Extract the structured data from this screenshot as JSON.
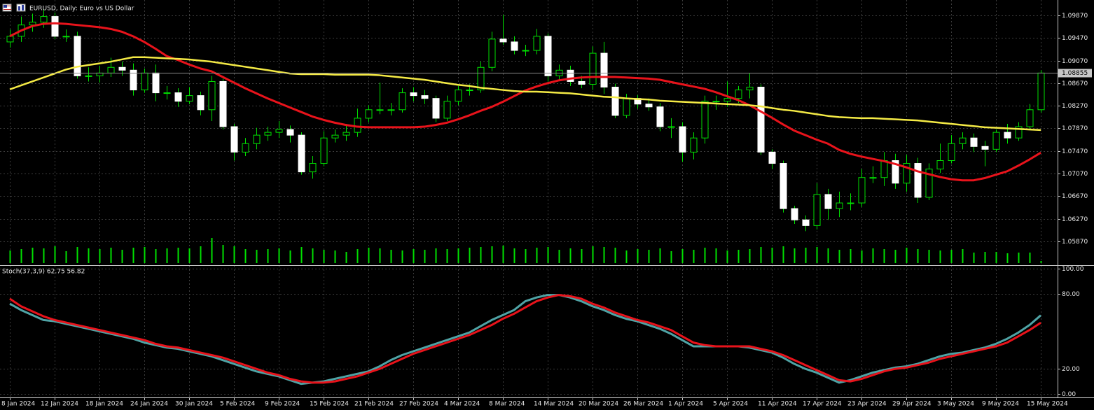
{
  "chart_data": [
    {
      "type": "candlestick",
      "title": "EURUSD, Daily:  Euro vs US Dollar",
      "categories": [
        "8 Jan 2024",
        null,
        null,
        null,
        "12 Jan 2024",
        null,
        null,
        null,
        "18 Jan 2024",
        null,
        null,
        null,
        "24 Jan 2024",
        null,
        null,
        null,
        "30 Jan 2024",
        null,
        null,
        null,
        "5 Feb 2024",
        null,
        null,
        null,
        "9 Feb 2024",
        null,
        null,
        null,
        "15 Feb 2024",
        null,
        null,
        null,
        "21 Feb 2024",
        null,
        null,
        null,
        "27 Feb 2024",
        null,
        null,
        null,
        "4 Mar 2024",
        null,
        null,
        null,
        "8 Mar 2024",
        null,
        null,
        null,
        "14 Mar 2024",
        null,
        null,
        null,
        "20 Mar 2024",
        null,
        null,
        null,
        "26 Mar 2024",
        null,
        null,
        null,
        "1 Apr 2024",
        null,
        null,
        null,
        "5 Apr 2024",
        null,
        null,
        null,
        "11 Apr 2024",
        null,
        null,
        null,
        "17 Apr 2024",
        null,
        null,
        null,
        "23 Apr 2024",
        null,
        null,
        null,
        "29 Apr 2024",
        null,
        null,
        null,
        "3 May 2024",
        null,
        null,
        null,
        "9 May 2024",
        null,
        null,
        null,
        "15 May 2024"
      ],
      "open": [
        1.094,
        1.095,
        1.097,
        1.0975,
        1.0985,
        1.095,
        1.095,
        1.088,
        1.088,
        1.0885,
        1.0895,
        1.089,
        1.0855,
        1.0885,
        1.085,
        1.085,
        1.0835,
        1.0845,
        1.082,
        1.087,
        1.079,
        1.0745,
        1.076,
        1.0775,
        1.078,
        1.0785,
        1.0775,
        1.071,
        1.0725,
        1.077,
        1.0775,
        1.078,
        1.0805,
        1.082,
        1.082,
        1.082,
        1.085,
        1.0845,
        1.084,
        1.0805,
        1.0835,
        1.0855,
        1.0855,
        1.0895,
        1.0945,
        1.094,
        1.0925,
        1.0925,
        1.095,
        1.088,
        1.089,
        1.087,
        1.0865,
        1.092,
        1.086,
        1.081,
        1.084,
        1.083,
        1.0825,
        1.079,
        1.079,
        1.0745,
        1.077,
        1.0835,
        1.0835,
        1.084,
        1.0855,
        1.086,
        1.0745,
        1.0725,
        1.0645,
        1.0625,
        1.0615,
        1.067,
        1.0645,
        1.0655,
        1.0655,
        1.07,
        1.07,
        1.073,
        1.069,
        1.0725,
        1.0665,
        1.0715,
        1.073,
        1.076,
        1.077,
        1.0755,
        1.075,
        1.078,
        1.077,
        1.079,
        1.082
      ],
      "high": [
        1.0962,
        1.0985,
        1.099,
        1.0998,
        1.0992,
        1.0962,
        1.0958,
        1.0895,
        1.0898,
        1.0912,
        1.0905,
        1.0902,
        1.0893,
        1.09,
        1.0862,
        1.0858,
        1.086,
        1.0852,
        1.088,
        1.0875,
        1.0795,
        1.077,
        1.0788,
        1.079,
        1.08,
        1.0792,
        1.078,
        1.0738,
        1.0782,
        1.0785,
        1.0795,
        1.0822,
        1.0828,
        1.0868,
        1.0832,
        1.0858,
        1.086,
        1.0855,
        1.0845,
        1.0845,
        1.0862,
        1.0865,
        1.0905,
        1.0958,
        1.0988,
        1.095,
        1.0935,
        1.0963,
        1.0955,
        1.09,
        1.0898,
        1.088,
        1.0932,
        1.094,
        1.0866,
        1.0848,
        1.0846,
        1.084,
        1.0832,
        1.0805,
        1.0798,
        1.078,
        1.0845,
        1.0845,
        1.087,
        1.0862,
        1.0885,
        1.0865,
        1.075,
        1.073,
        1.065,
        1.0633,
        1.069,
        1.068,
        1.0675,
        1.0672,
        1.0715,
        1.072,
        1.0745,
        1.0742,
        1.074,
        1.0735,
        1.0725,
        1.076,
        1.0775,
        1.078,
        1.0778,
        1.0765,
        1.0785,
        1.0795,
        1.0798,
        1.083,
        1.089
      ],
      "low": [
        1.093,
        1.094,
        1.0958,
        1.0965,
        1.0945,
        1.094,
        1.0875,
        1.087,
        1.0868,
        1.0878,
        1.088,
        1.0845,
        1.085,
        1.0835,
        1.0838,
        1.0825,
        1.083,
        1.081,
        1.08,
        1.0785,
        1.073,
        1.0738,
        1.075,
        1.0765,
        1.077,
        1.0762,
        1.0705,
        1.0698,
        1.072,
        1.0762,
        1.0765,
        1.0772,
        1.0798,
        1.0812,
        1.081,
        1.0815,
        1.0835,
        1.083,
        1.0798,
        1.08,
        1.0828,
        1.0845,
        1.085,
        1.0888,
        1.0935,
        1.0918,
        1.0915,
        1.0918,
        1.087,
        1.0872,
        1.0862,
        1.0858,
        1.0855,
        1.0848,
        1.0805,
        1.0805,
        1.0822,
        1.0818,
        1.0782,
        1.077,
        1.0728,
        1.0732,
        1.076,
        1.082,
        1.0825,
        1.0832,
        1.084,
        1.074,
        1.0715,
        1.0638,
        1.0618,
        1.0605,
        1.0608,
        1.0625,
        1.063,
        1.0642,
        1.0648,
        1.069,
        1.0685,
        1.068,
        1.0675,
        1.0655,
        1.066,
        1.0708,
        1.0725,
        1.075,
        1.0745,
        1.072,
        1.0745,
        1.076,
        1.0765,
        1.0785,
        1.0815
      ],
      "close": [
        1.095,
        1.097,
        1.0975,
        1.0985,
        1.095,
        1.095,
        1.088,
        1.088,
        1.0885,
        1.0895,
        1.089,
        1.0855,
        1.0885,
        1.085,
        1.085,
        1.0835,
        1.0845,
        1.082,
        1.087,
        1.079,
        1.0745,
        1.076,
        1.0775,
        1.078,
        1.0785,
        1.0775,
        1.071,
        1.0725,
        1.077,
        1.0775,
        1.078,
        1.0805,
        1.082,
        1.082,
        1.082,
        1.085,
        1.0845,
        1.084,
        1.0805,
        1.0835,
        1.0855,
        1.0855,
        1.0895,
        1.0945,
        1.094,
        1.0925,
        1.0925,
        1.095,
        1.088,
        1.089,
        1.087,
        1.0865,
        1.092,
        1.086,
        1.081,
        1.084,
        1.083,
        1.0825,
        1.079,
        1.079,
        1.0745,
        1.077,
        1.0835,
        1.0835,
        1.084,
        1.0855,
        1.086,
        1.0745,
        1.0725,
        1.0645,
        1.0625,
        1.0615,
        1.067,
        1.0645,
        1.0655,
        1.0655,
        1.07,
        1.07,
        1.073,
        1.069,
        1.0725,
        1.0665,
        1.0715,
        1.073,
        1.076,
        1.077,
        1.0755,
        1.075,
        1.078,
        1.077,
        1.079,
        1.082,
        1.0885
      ],
      "up_color": "#00e000",
      "down_color": "#ffffff",
      "wick_color": "#00e000",
      "moving_averages": [
        {
          "color": "#e8131b",
          "values": [
            1.095,
            1.096,
            1.0968,
            1.0972,
            1.0973,
            1.0972,
            1.097,
            1.0968,
            1.0966,
            1.0963,
            1.0958,
            1.095,
            1.094,
            1.0928,
            1.0915,
            1.0908,
            1.09,
            1.0893,
            1.0888,
            1.0878,
            1.0868,
            1.0858,
            1.0849,
            1.084,
            1.0832,
            1.0824,
            1.0816,
            1.0808,
            1.0802,
            1.0797,
            1.0793,
            1.079,
            1.0789,
            1.0789,
            1.0789,
            1.0789,
            1.0789,
            1.079,
            1.0793,
            1.0797,
            1.0803,
            1.081,
            1.0818,
            1.0825,
            1.0834,
            1.0844,
            1.0854,
            1.0861,
            1.0867,
            1.0872,
            1.0875,
            1.0877,
            1.0878,
            1.0878,
            1.0878,
            1.0877,
            1.0876,
            1.0875,
            1.0873,
            1.0869,
            1.0865,
            1.0861,
            1.0857,
            1.0851,
            1.0844,
            1.0837,
            1.0828,
            1.0817,
            1.0806,
            1.0794,
            1.0783,
            1.0775,
            1.0767,
            1.076,
            1.0749,
            1.0742,
            1.0737,
            1.0733,
            1.0729,
            1.0724,
            1.0718,
            1.0711,
            1.0706,
            1.0701,
            1.0697,
            1.0695,
            1.0695,
            1.0699,
            1.0705,
            1.0711,
            1.0721,
            1.0732,
            1.0744
          ]
        },
        {
          "color": "#f4ea45",
          "values": [
            1.0856,
            1.0863,
            1.087,
            1.0877,
            1.0884,
            1.0891,
            1.0896,
            1.0899,
            1.0902,
            1.0905,
            1.0909,
            1.0913,
            1.0913,
            1.0912,
            1.0911,
            1.091,
            1.0909,
            1.0907,
            1.0905,
            1.0902,
            1.0899,
            1.0896,
            1.0893,
            1.089,
            1.0887,
            1.0884,
            1.0883,
            1.0883,
            1.0883,
            1.0882,
            1.0882,
            1.0882,
            1.0882,
            1.0881,
            1.0879,
            1.0877,
            1.0875,
            1.0873,
            1.087,
            1.0867,
            1.0864,
            1.0862,
            1.0859,
            1.0857,
            1.0855,
            1.0853,
            1.0852,
            1.0852,
            1.0851,
            1.085,
            1.0849,
            1.0847,
            1.0845,
            1.0843,
            1.0842,
            1.084,
            1.0839,
            1.0838,
            1.0836,
            1.0835,
            1.0834,
            1.0833,
            1.0832,
            1.0831,
            1.083,
            1.0829,
            1.0828,
            1.0826,
            1.0823,
            1.082,
            1.0818,
            1.0815,
            1.0812,
            1.0809,
            1.0807,
            1.0806,
            1.0805,
            1.0805,
            1.0804,
            1.0803,
            1.0802,
            1.0801,
            1.0799,
            1.0797,
            1.0795,
            1.0793,
            1.0791,
            1.0789,
            1.0788,
            1.0787,
            1.0786,
            1.0785,
            1.0784
          ]
        }
      ],
      "volume": {
        "color": "#00e000",
        "ylim": [
          0,
          40
        ],
        "values": [
          18,
          20,
          22,
          21,
          24,
          17,
          23,
          21,
          20,
          22,
          19,
          22,
          23,
          20,
          21,
          22,
          21,
          24,
          36,
          26,
          24,
          20,
          19,
          20,
          21,
          18,
          23,
          21,
          19,
          18,
          16,
          20,
          22,
          21,
          19,
          18,
          20,
          19,
          21,
          20,
          21,
          22,
          23,
          24,
          25,
          21,
          20,
          22,
          23,
          19,
          21,
          20,
          24,
          23,
          22,
          18,
          20,
          19,
          21,
          17,
          20,
          19,
          22,
          21,
          18,
          19,
          20,
          23,
          22,
          24,
          21,
          22,
          23,
          21,
          19,
          20,
          18,
          21,
          20,
          19,
          22,
          20,
          19,
          18,
          19,
          20,
          15,
          16,
          16,
          14,
          15,
          15,
          3
        ]
      },
      "ylim": [
        1.05461,
        1.10142
      ],
      "yticks": [
        {
          "value": 1.0987,
          "label": "1.09870"
        },
        {
          "value": 1.0947,
          "label": "1.09470"
        },
        {
          "value": 1.0907,
          "label": "1.09070"
        },
        {
          "value": 1.0867,
          "label": "1.08670"
        },
        {
          "value": 1.0827,
          "label": "1.08270"
        },
        {
          "value": 1.0787,
          "label": "1.07870"
        },
        {
          "value": 1.0747,
          "label": "1.07470"
        },
        {
          "value": 1.0707,
          "label": "1.07070"
        },
        {
          "value": 1.0667,
          "label": "1.06670"
        },
        {
          "value": 1.0627,
          "label": "1.06270"
        },
        {
          "value": 1.0587,
          "label": "1.05870"
        }
      ],
      "current_price": 1.08855,
      "grid": true
    },
    {
      "type": "line",
      "title": "Stoch(37,3,9) 62.75 56.82",
      "series": [
        {
          "color": "#4fa3a5",
          "values": [
            72,
            67,
            63,
            59,
            58,
            56,
            54,
            52,
            50,
            48,
            46,
            44,
            41,
            39,
            37,
            36,
            34,
            32,
            30,
            27,
            24,
            21,
            18,
            16,
            14,
            11,
            8,
            9,
            10,
            12,
            14,
            16,
            18,
            22,
            27,
            31,
            34,
            37,
            40,
            43,
            46,
            49,
            54,
            59,
            63,
            67,
            74,
            77,
            79,
            79,
            77,
            74,
            70,
            67,
            63,
            60,
            58,
            55,
            52,
            48,
            43,
            38,
            38,
            38,
            38,
            38,
            37,
            35,
            33,
            29,
            24,
            20,
            17,
            13,
            9,
            11,
            14,
            17,
            19,
            21,
            22,
            24,
            27,
            30,
            32,
            33,
            35,
            37,
            40,
            44,
            49,
            55,
            62.75
          ]
        },
        {
          "color": "#e8131b",
          "values": [
            76,
            70,
            66,
            62,
            59,
            57,
            55,
            53,
            51,
            49,
            47,
            45,
            43,
            40,
            38,
            37,
            35,
            33,
            31,
            29,
            26,
            23,
            20,
            17,
            15,
            12,
            10,
            9,
            9,
            10,
            12,
            14,
            17,
            20,
            24,
            28,
            32,
            35,
            38,
            41,
            44,
            47,
            51,
            55,
            60,
            64,
            69,
            74,
            77,
            79,
            78,
            76,
            72,
            69,
            65,
            62,
            59,
            57,
            54,
            51,
            46,
            41,
            39,
            38,
            38,
            38,
            38,
            36,
            34,
            31,
            27,
            23,
            19,
            15,
            11,
            10,
            12,
            15,
            18,
            20,
            21,
            23,
            25,
            28,
            30,
            32,
            34,
            36,
            38,
            41,
            46,
            51,
            56.82
          ]
        }
      ],
      "ylim": [
        0,
        100
      ],
      "yticks": [
        {
          "value": 100,
          "label": "100.00"
        },
        {
          "value": 80,
          "label": "80.00"
        },
        {
          "value": 20,
          "label": "20.00"
        },
        {
          "value": 0,
          "label": "0.00"
        }
      ],
      "grid": true
    }
  ]
}
